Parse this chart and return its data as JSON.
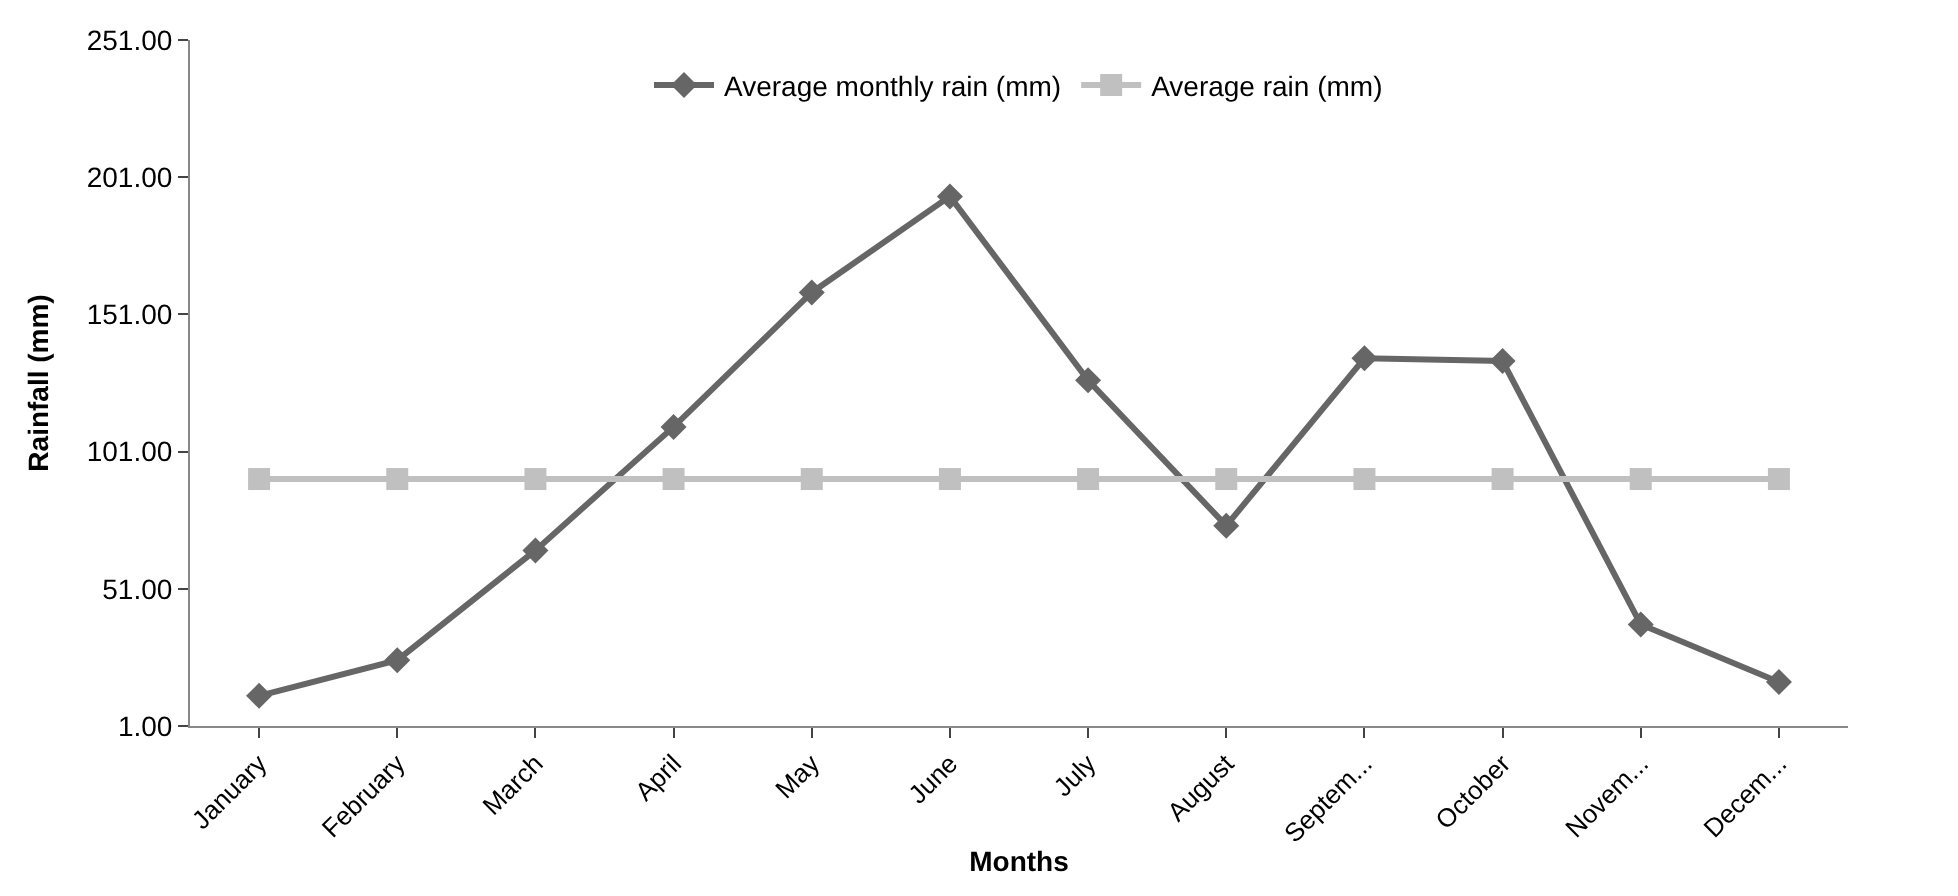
{
  "chart_data": {
    "type": "line",
    "xlabel": "Months",
    "ylabel": "Rainfall (mm)",
    "categories": [
      "January",
      "February",
      "March",
      "April",
      "May",
      "June",
      "July",
      "August",
      "Septem...",
      "October",
      "Novem...",
      "Decem..."
    ],
    "series": [
      {
        "name": "Average monthly rain (mm)",
        "color": "#666666",
        "marker": "diamond",
        "values": [
          12,
          25,
          65,
          110,
          159,
          194,
          127,
          74,
          135,
          134,
          38,
          17
        ]
      },
      {
        "name": "Average rain (mm)",
        "color": "#c0c0c0",
        "marker": "square",
        "values": [
          91,
          91,
          91,
          91,
          91,
          91,
          91,
          91,
          91,
          91,
          91,
          91
        ]
      }
    ],
    "ylim": [
      1,
      251
    ],
    "yticks": [
      {
        "value": 1,
        "label": "1.00"
      },
      {
        "value": 51,
        "label": "51.00"
      },
      {
        "value": 101,
        "label": "101.00"
      },
      {
        "value": 151,
        "label": "151.00"
      },
      {
        "value": 201,
        "label": "201.00"
      },
      {
        "value": 251,
        "label": "251.00"
      }
    ],
    "legend": "top",
    "line_style": "solid"
  }
}
